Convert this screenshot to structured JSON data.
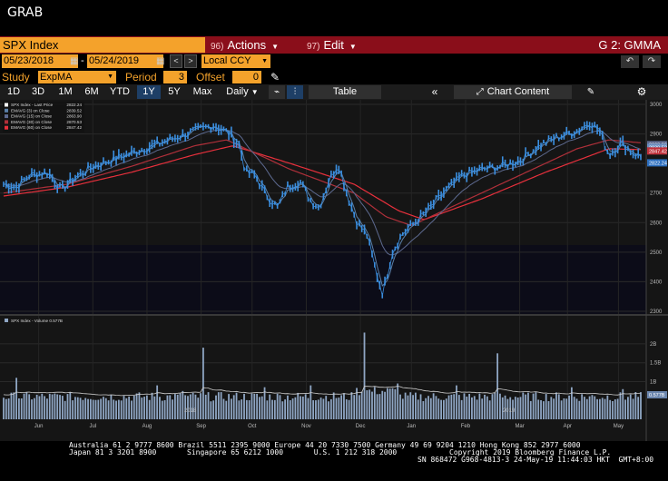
{
  "window": {
    "title": "GRAB"
  },
  "security": {
    "ticker": "SPX Index"
  },
  "menu": {
    "actions": {
      "code": "96)",
      "label": "Actions"
    },
    "edit": {
      "code": "97)",
      "label": "Edit"
    },
    "panel": "G 2: GMMA"
  },
  "dates": {
    "start": "05/23/2018",
    "end": "05/24/2019",
    "currency": "Local CCY"
  },
  "study": {
    "label": "Study",
    "value": "ExpMA",
    "period_label": "Period",
    "period": "3",
    "offset_label": "Offset",
    "offset": "0"
  },
  "toolbar": {
    "ranges": [
      "1D",
      "3D",
      "1M",
      "6M",
      "YTD",
      "1Y",
      "5Y",
      "Max"
    ],
    "selected_range": "1Y",
    "frequency": "Daily",
    "table": "Table",
    "chart_content": "Chart Content"
  },
  "colors": {
    "price": "#3b8fe0",
    "ema3": "#5a7fa8",
    "ema15": "#5d6a90",
    "ema30": "#b0303a",
    "ema60": "#e8303c",
    "volume": "#8fa6c4",
    "accent": "#f4a22b",
    "header_red": "#8a0e1a"
  },
  "chart_data": [
    {
      "type": "line",
      "legend": [
        {
          "name": "SPX Index - Last Price",
          "value": "2822.24"
        },
        {
          "name": "EMAVG (3) on Close",
          "value": "2839.52"
        },
        {
          "name": "EMAVG (15) on Close",
          "value": "2863.90"
        },
        {
          "name": "EMAVG (30) on Close",
          "value": "2870.53"
        },
        {
          "name": "EMAVG (60) on Close",
          "value": "2847.42"
        }
      ],
      "ylim": [
        2300,
        3000
      ],
      "yticks": [
        3000,
        2900,
        2800,
        2700,
        2600,
        2500,
        2400,
        2300
      ],
      "xticks": [
        {
          "t": 0.055,
          "label": "Jun"
        },
        {
          "t": 0.14,
          "label": "Jul"
        },
        {
          "t": 0.225,
          "label": "Aug"
        },
        {
          "t": 0.31,
          "label": "Sep",
          "sub": "2018"
        },
        {
          "t": 0.39,
          "label": "Oct"
        },
        {
          "t": 0.475,
          "label": "Nov"
        },
        {
          "t": 0.56,
          "label": "Dec"
        },
        {
          "t": 0.64,
          "label": "Jan"
        },
        {
          "t": 0.725,
          "label": "Feb"
        },
        {
          "t": 0.81,
          "label": "Mar",
          "sub": "2019"
        },
        {
          "t": 0.885,
          "label": "Apr"
        },
        {
          "t": 0.965,
          "label": "May"
        }
      ],
      "price_key": [
        [
          0,
          2730
        ],
        [
          0.02,
          2720
        ],
        [
          0.04,
          2760
        ],
        [
          0.07,
          2770
        ],
        [
          0.09,
          2710
        ],
        [
          0.11,
          2750
        ],
        [
          0.14,
          2790
        ],
        [
          0.18,
          2820
        ],
        [
          0.22,
          2850
        ],
        [
          0.26,
          2880
        ],
        [
          0.3,
          2910
        ],
        [
          0.33,
          2930
        ],
        [
          0.355,
          2900
        ],
        [
          0.37,
          2860
        ],
        [
          0.38,
          2770
        ],
        [
          0.395,
          2760
        ],
        [
          0.41,
          2700
        ],
        [
          0.43,
          2650
        ],
        [
          0.445,
          2720
        ],
        [
          0.465,
          2740
        ],
        [
          0.48,
          2680
        ],
        [
          0.495,
          2650
        ],
        [
          0.51,
          2740
        ],
        [
          0.525,
          2800
        ],
        [
          0.54,
          2690
        ],
        [
          0.555,
          2600
        ],
        [
          0.57,
          2560
        ],
        [
          0.585,
          2430
        ],
        [
          0.595,
          2360
        ],
        [
          0.61,
          2500
        ],
        [
          0.625,
          2560
        ],
        [
          0.645,
          2600
        ],
        [
          0.665,
          2640
        ],
        [
          0.69,
          2700
        ],
        [
          0.72,
          2760
        ],
        [
          0.75,
          2780
        ],
        [
          0.78,
          2790
        ],
        [
          0.81,
          2810
        ],
        [
          0.84,
          2860
        ],
        [
          0.87,
          2890
        ],
        [
          0.9,
          2910
        ],
        [
          0.92,
          2940
        ],
        [
          0.935,
          2910
        ],
        [
          0.95,
          2830
        ],
        [
          0.97,
          2870
        ],
        [
          0.985,
          2840
        ],
        [
          1.0,
          2822
        ]
      ],
      "ema30_key": [
        [
          0,
          2700
        ],
        [
          0.1,
          2730
        ],
        [
          0.2,
          2790
        ],
        [
          0.3,
          2860
        ],
        [
          0.35,
          2880
        ],
        [
          0.4,
          2830
        ],
        [
          0.45,
          2780
        ],
        [
          0.5,
          2740
        ],
        [
          0.55,
          2700
        ],
        [
          0.6,
          2620
        ],
        [
          0.64,
          2590
        ],
        [
          0.7,
          2650
        ],
        [
          0.8,
          2750
        ],
        [
          0.9,
          2850
        ],
        [
          0.95,
          2880
        ],
        [
          1.0,
          2870
        ]
      ],
      "ema60_key": [
        [
          0,
          2690
        ],
        [
          0.1,
          2720
        ],
        [
          0.2,
          2770
        ],
        [
          0.3,
          2830
        ],
        [
          0.36,
          2860
        ],
        [
          0.45,
          2800
        ],
        [
          0.55,
          2730
        ],
        [
          0.62,
          2640
        ],
        [
          0.66,
          2610
        ],
        [
          0.75,
          2680
        ],
        [
          0.85,
          2770
        ],
        [
          0.95,
          2850
        ],
        [
          1.0,
          2847
        ]
      ]
    },
    {
      "type": "bar",
      "legend": [
        {
          "name": "SPX Index - Volume",
          "value": "0.577B"
        }
      ],
      "ylim": [
        0,
        2.6
      ],
      "yticks": [
        {
          "v": 2.0,
          "label": "2B"
        },
        {
          "v": 1.5,
          "label": "1.5B"
        },
        {
          "v": 1.0,
          "label": "1B"
        }
      ],
      "last_label": "0.577B",
      "base_level": 0.55,
      "spikes": [
        {
          "t": 0.02,
          "v": 1.1
        },
        {
          "t": 0.24,
          "v": 0.9
        },
        {
          "t": 0.28,
          "v": 0.75
        },
        {
          "t": 0.315,
          "v": 1.9
        },
        {
          "t": 0.41,
          "v": 0.85
        },
        {
          "t": 0.48,
          "v": 0.9
        },
        {
          "t": 0.565,
          "v": 2.3
        },
        {
          "t": 0.62,
          "v": 0.95
        },
        {
          "t": 0.71,
          "v": 0.9
        },
        {
          "t": 0.775,
          "v": 1.75
        },
        {
          "t": 0.89,
          "v": 0.85
        },
        {
          "t": 0.97,
          "v": 0.8
        }
      ]
    }
  ],
  "footer": {
    "line1": "Australia 61 2 9777 8600 Brazil 5511 2395 9000 Europe 44 20 7330 7500 Germany 49 69 9204 1210 Hong Kong 852 2977 6000",
    "line2": "Japan 81 3 3201 8900       Singapore 65 6212 1000       U.S. 1 212 318 2000            Copyright 2019 Bloomberg Finance L.P.",
    "line3": "SN 868472 G968-4813-3 24-May-19 11:44:03 HKT  GMT+8:00"
  }
}
